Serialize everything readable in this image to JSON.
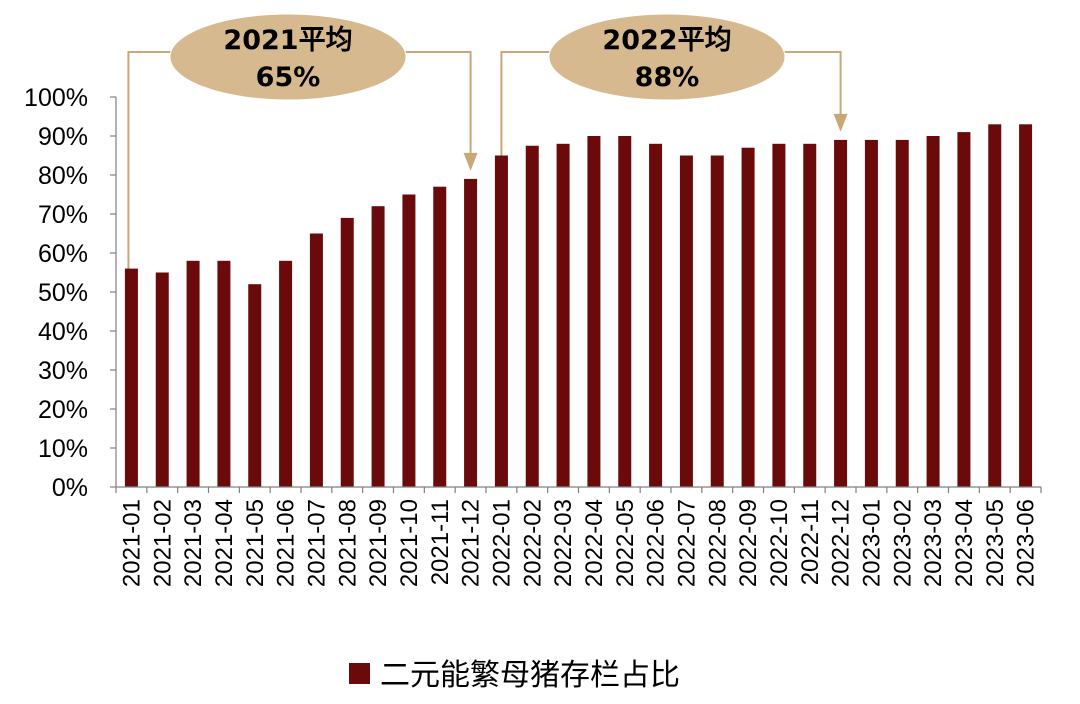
{
  "chart_data": {
    "type": "bar",
    "categories": [
      "2021-01",
      "2021-02",
      "2021-03",
      "2021-04",
      "2021-05",
      "2021-06",
      "2021-07",
      "2021-08",
      "2021-09",
      "2021-10",
      "2021-11",
      "2021-12",
      "2022-01",
      "2022-02",
      "2022-03",
      "2022-04",
      "2022-05",
      "2022-06",
      "2022-07",
      "2022-08",
      "2022-09",
      "2022-10",
      "2022-11",
      "2022-12",
      "2023-01",
      "2023-02",
      "2023-03",
      "2023-04",
      "2023-05",
      "2023-06"
    ],
    "series": [
      {
        "name": "二元能繁母猪存栏占比",
        "color": "#6b0a0a",
        "values": [
          56,
          55,
          58,
          58,
          52,
          58,
          65,
          69,
          72,
          75,
          77,
          79,
          85,
          87.5,
          88,
          90,
          90,
          88,
          85,
          85,
          87,
          88,
          88,
          89,
          89,
          89,
          90,
          91,
          93,
          93
        ]
      }
    ],
    "ylim": [
      0,
      100
    ],
    "yticks": [
      "0%",
      "10%",
      "20%",
      "30%",
      "40%",
      "50%",
      "60%",
      "70%",
      "80%",
      "90%",
      "100%"
    ],
    "legend_position": "bottom-center",
    "grid": false,
    "annotations": [
      {
        "line1": "2021平均",
        "line2": "65%",
        "from": "2021-01",
        "to": "2021-12"
      },
      {
        "line1": "2022平均",
        "line2": "88%",
        "from": "2022-01",
        "to": "2022-12"
      }
    ],
    "colors": {
      "bar": "#6b0a0a",
      "callout_fill": "#d6b98f",
      "callout_line": "#c9a777",
      "axis": "#808080"
    }
  }
}
